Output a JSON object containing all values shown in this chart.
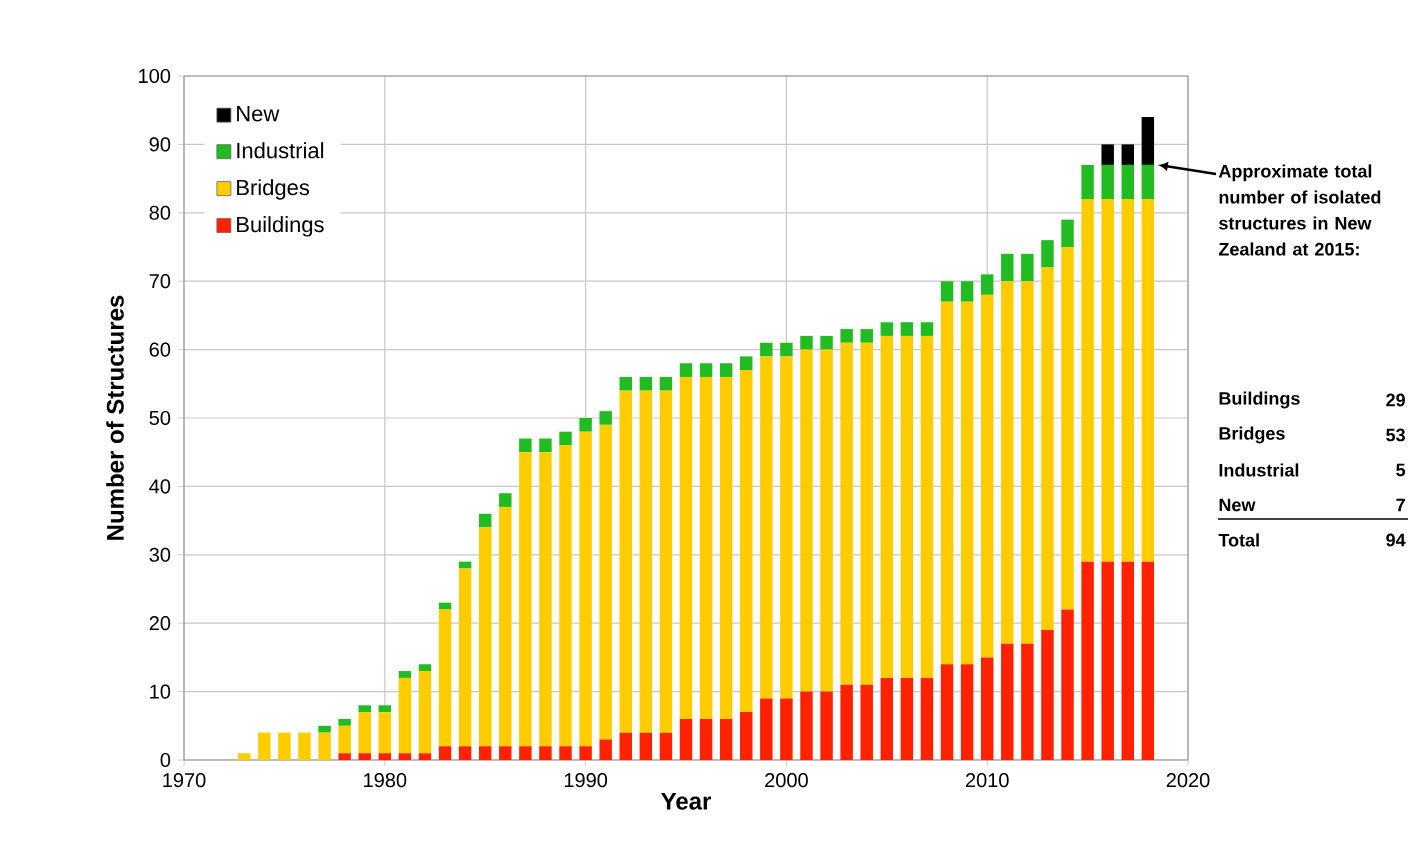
{
  "chart_data": {
    "type": "bar",
    "stacked": true,
    "x": [
      1973,
      1974,
      1975,
      1976,
      1977,
      1978,
      1979,
      1980,
      1981,
      1982,
      1983,
      1984,
      1985,
      1986,
      1987,
      1988,
      1989,
      1990,
      1991,
      1992,
      1993,
      1994,
      1995,
      1996,
      1997,
      1998,
      1999,
      2000,
      2001,
      2002,
      2003,
      2004,
      2005,
      2006,
      2007,
      2008,
      2009,
      2010,
      2011,
      2012,
      2013,
      2014,
      2015,
      2016,
      2017,
      2018
    ],
    "series": [
      {
        "name": "Buildings",
        "color": "#ff2200",
        "values": [
          0,
          0,
          0,
          0,
          0,
          1,
          1,
          1,
          1,
          1,
          2,
          2,
          2,
          2,
          2,
          2,
          2,
          2,
          3,
          4,
          4,
          4,
          6,
          6,
          6,
          7,
          9,
          9,
          10,
          10,
          11,
          11,
          12,
          12,
          12,
          14,
          14,
          15,
          17,
          17,
          19,
          22,
          29,
          29,
          29,
          29
        ]
      },
      {
        "name": "Bridges",
        "color": "#ffcc00",
        "values": [
          1,
          4,
          4,
          4,
          4,
          4,
          6,
          6,
          11,
          12,
          20,
          26,
          32,
          35,
          43,
          43,
          44,
          46,
          46,
          50,
          50,
          50,
          50,
          50,
          50,
          50,
          50,
          50,
          50,
          50,
          50,
          50,
          50,
          50,
          50,
          53,
          53,
          53,
          53,
          53,
          53,
          53,
          53,
          53,
          53,
          53
        ]
      },
      {
        "name": "Industrial",
        "color": "#22bb22",
        "values": [
          0,
          0,
          0,
          0,
          1,
          1,
          1,
          1,
          1,
          1,
          1,
          1,
          2,
          2,
          2,
          2,
          2,
          2,
          2,
          2,
          2,
          2,
          2,
          2,
          2,
          2,
          2,
          2,
          2,
          2,
          2,
          2,
          2,
          2,
          2,
          3,
          3,
          3,
          4,
          4,
          4,
          4,
          5,
          5,
          5,
          5
        ]
      },
      {
        "name": "New",
        "color": "#000000",
        "values": [
          0,
          0,
          0,
          0,
          0,
          0,
          0,
          0,
          0,
          0,
          0,
          0,
          0,
          0,
          0,
          0,
          0,
          0,
          0,
          0,
          0,
          0,
          0,
          0,
          0,
          0,
          0,
          0,
          0,
          0,
          0,
          0,
          0,
          0,
          0,
          0,
          0,
          0,
          0,
          0,
          0,
          0,
          0,
          3,
          3,
          7
        ]
      }
    ],
    "xlim": [
      1970,
      2020
    ],
    "xticks": [
      1970,
      1980,
      1990,
      2000,
      2010,
      2020
    ],
    "ylim": [
      0,
      100
    ],
    "yticks": [
      0,
      10,
      20,
      30,
      40,
      50,
      60,
      70,
      80,
      90,
      100
    ],
    "xlabel": "Year",
    "ylabel": "Number of Structures",
    "grid": true,
    "legend": "top left",
    "annotations": [
      "Approximate total number of isolated structures in New Zealand at 2015:",
      "Buildings",
      "29",
      "Bridges",
      "53",
      "Industrial",
      "5",
      "New",
      "7",
      "Total",
      "94"
    ]
  }
}
